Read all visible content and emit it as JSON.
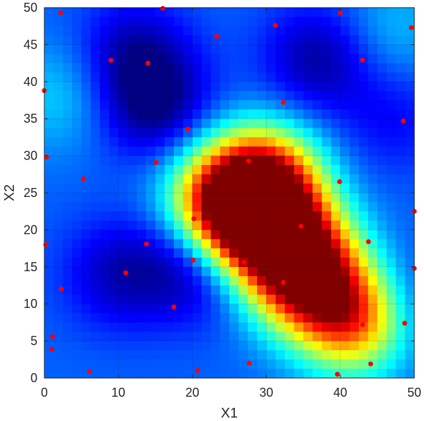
{
  "chart_data": {
    "type": "heatmap",
    "title": "",
    "xlabel": "X1",
    "ylabel": "X2",
    "xlim": [
      0,
      50
    ],
    "ylim": [
      0,
      50
    ],
    "xticks": [
      "0",
      "10",
      "20",
      "30",
      "40",
      "50"
    ],
    "yticks": [
      "0",
      "5",
      "10",
      "15",
      "20",
      "25",
      "30",
      "35",
      "40",
      "45",
      "50"
    ],
    "grid": true,
    "colormap": "jet",
    "point_color": "#ff0000",
    "hot_regions": [
      {
        "x": 28,
        "y": 22,
        "level": 1.0
      },
      {
        "x": 33,
        "y": 18,
        "level": 0.95
      },
      {
        "x": 36,
        "y": 13,
        "level": 0.9
      },
      {
        "x": 42,
        "y": 8,
        "level": 0.9
      },
      {
        "x": 24,
        "y": 24,
        "level": 0.75
      },
      {
        "x": 30,
        "y": 27,
        "level": 0.8
      },
      {
        "x": 15,
        "y": 37,
        "level": -0.35
      },
      {
        "x": 12,
        "y": 44,
        "level": -0.25
      },
      {
        "x": 37,
        "y": 43,
        "level": -0.3
      },
      {
        "x": 47,
        "y": 35,
        "level": -0.15
      },
      {
        "x": 10,
        "y": 14,
        "level": -0.25
      },
      {
        "x": 20,
        "y": 15,
        "level": -0.3
      },
      {
        "x": 47,
        "y": 10,
        "level": -0.2
      },
      {
        "x": 2,
        "y": 38,
        "level": 0.18
      },
      {
        "x": 47,
        "y": 47,
        "level": 0.15
      }
    ],
    "points": [
      {
        "x": 2.2,
        "y": 49.3
      },
      {
        "x": 16.0,
        "y": 49.9
      },
      {
        "x": 40.0,
        "y": 49.3
      },
      {
        "x": 23.3,
        "y": 46.1
      },
      {
        "x": 31.2,
        "y": 47.6
      },
      {
        "x": 49.6,
        "y": 47.3
      },
      {
        "x": 9.0,
        "y": 42.9
      },
      {
        "x": 14.0,
        "y": 42.5
      },
      {
        "x": 43.0,
        "y": 42.9
      },
      {
        "x": 0.0,
        "y": 38.8
      },
      {
        "x": 32.3,
        "y": 37.2
      },
      {
        "x": 48.5,
        "y": 34.7
      },
      {
        "x": 19.4,
        "y": 33.6
      },
      {
        "x": 0.3,
        "y": 29.8
      },
      {
        "x": 15.1,
        "y": 29.1
      },
      {
        "x": 27.6,
        "y": 29.3
      },
      {
        "x": 5.3,
        "y": 26.9
      },
      {
        "x": 39.9,
        "y": 26.5
      },
      {
        "x": 20.2,
        "y": 21.5
      },
      {
        "x": 50.0,
        "y": 22.5
      },
      {
        "x": 34.7,
        "y": 20.5
      },
      {
        "x": 0.2,
        "y": 18.0
      },
      {
        "x": 13.8,
        "y": 18.1
      },
      {
        "x": 43.8,
        "y": 18.4
      },
      {
        "x": 20.1,
        "y": 15.9
      },
      {
        "x": 27.0,
        "y": 15.6
      },
      {
        "x": 11.0,
        "y": 14.2
      },
      {
        "x": 50.0,
        "y": 14.8
      },
      {
        "x": 2.3,
        "y": 12.0
      },
      {
        "x": 32.3,
        "y": 12.9
      },
      {
        "x": 17.5,
        "y": 9.6
      },
      {
        "x": 43.0,
        "y": 7.2
      },
      {
        "x": 48.7,
        "y": 7.4
      },
      {
        "x": 1.1,
        "y": 5.6
      },
      {
        "x": 1.0,
        "y": 3.9
      },
      {
        "x": 27.7,
        "y": 2.0
      },
      {
        "x": 44.1,
        "y": 1.9
      },
      {
        "x": 6.1,
        "y": 0.9
      },
      {
        "x": 20.7,
        "y": 1.0
      },
      {
        "x": 39.6,
        "y": 0.5
      }
    ]
  }
}
